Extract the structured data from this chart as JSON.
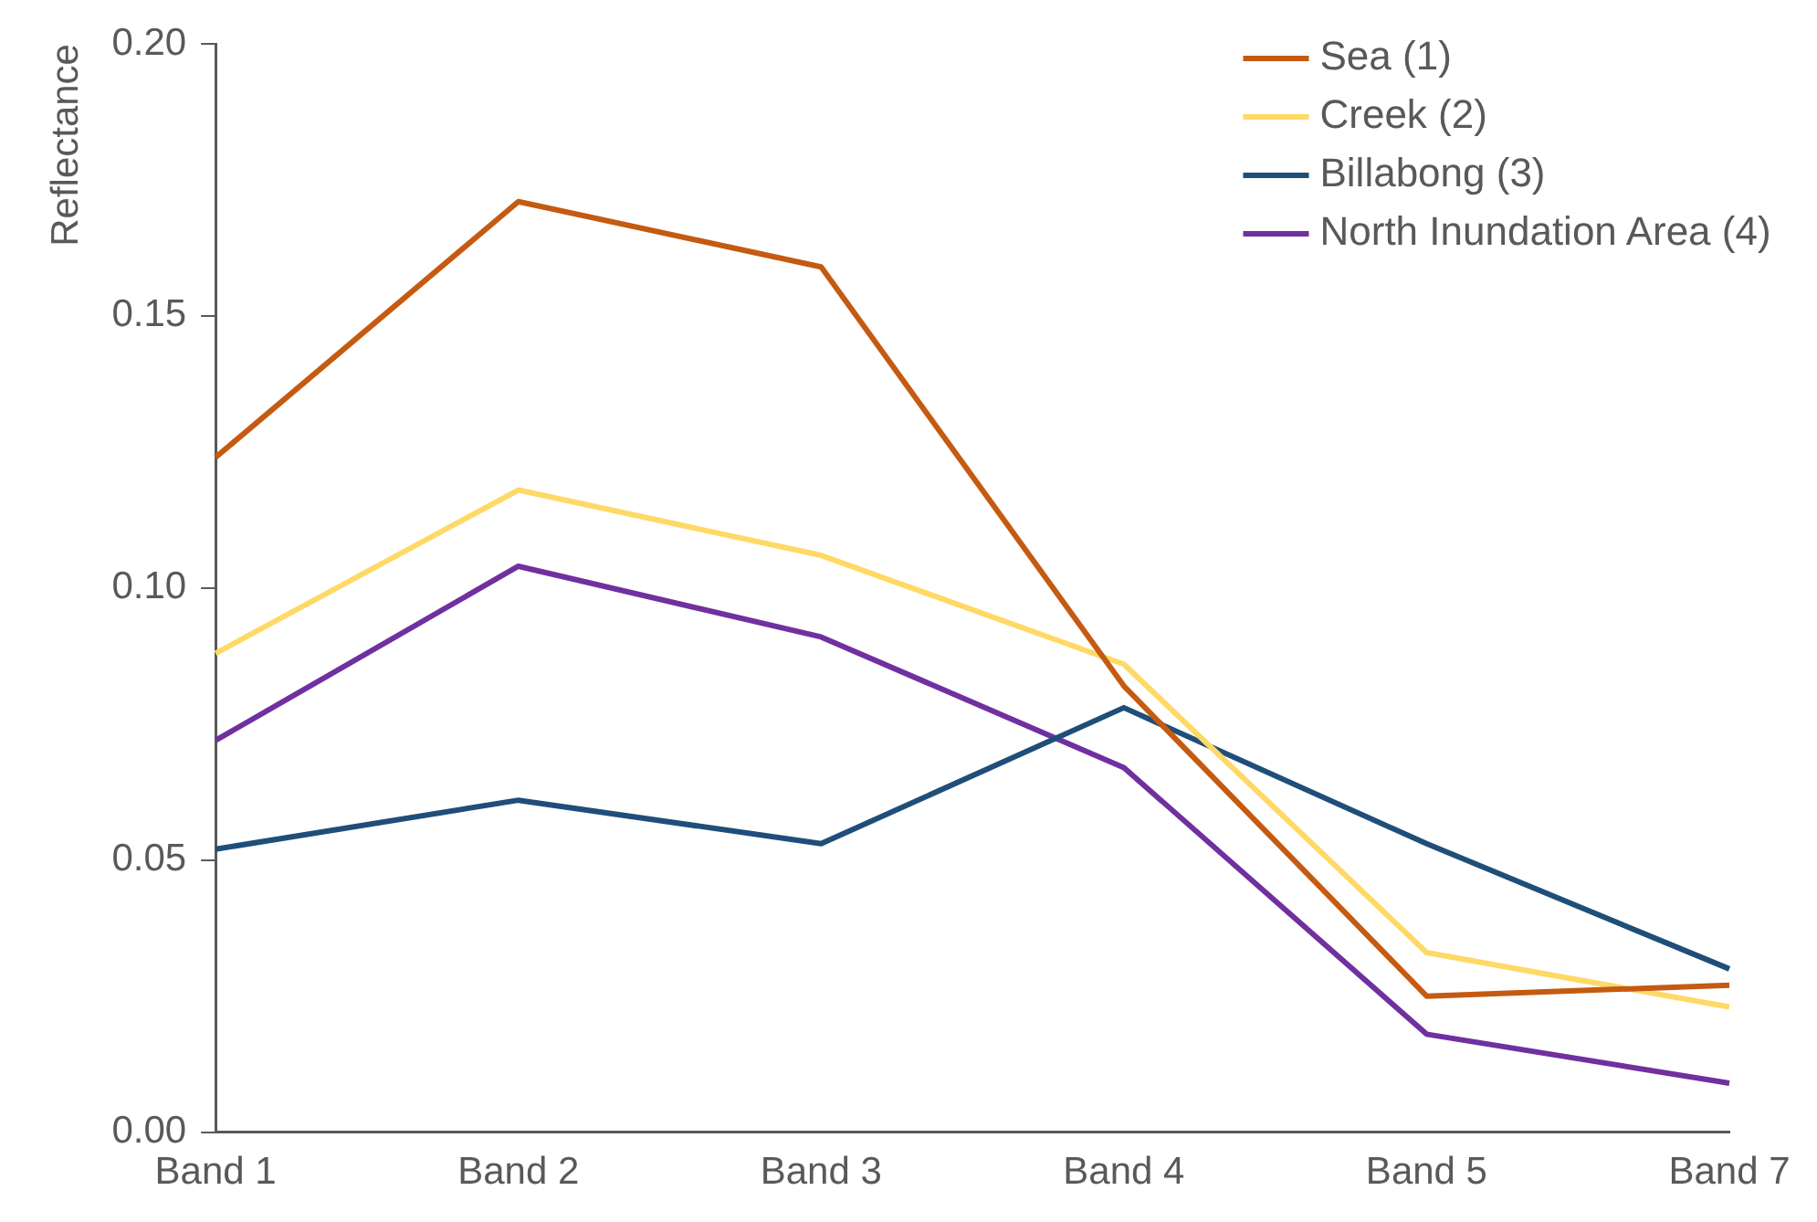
{
  "chart_data": {
    "type": "line",
    "ylabel": "Reflectance",
    "categories": [
      "Band 1",
      "Band 2",
      "Band 3",
      "Band 4",
      "Band 5",
      "Band 7"
    ],
    "series": [
      {
        "name": "Sea (1)",
        "color": "#c55a11",
        "values": [
          0.124,
          0.171,
          0.159,
          0.082,
          0.025,
          0.027
        ]
      },
      {
        "name": "Creek (2)",
        "color": "#ffd966",
        "values": [
          0.088,
          0.118,
          0.106,
          0.086,
          0.033,
          0.023
        ]
      },
      {
        "name": "Billabong (3)",
        "color": "#1f4e79",
        "values": [
          0.052,
          0.061,
          0.053,
          0.078,
          0.053,
          0.03
        ]
      },
      {
        "name": "North Inundation Area (4)",
        "color": "#7030a0",
        "values": [
          0.072,
          0.104,
          0.091,
          0.067,
          0.018,
          0.009
        ]
      }
    ],
    "ylim": [
      0,
      0.2
    ],
    "yticks": [
      {
        "value": 0,
        "label": "0.00"
      },
      0.05,
      {
        "value": 0.1,
        "label": "0.10"
      },
      0.15,
      {
        "value": 0.2,
        "label": "0.20"
      }
    ],
    "grid": false,
    "legend": "top right",
    "marker": "none",
    "line_style": "solid"
  }
}
